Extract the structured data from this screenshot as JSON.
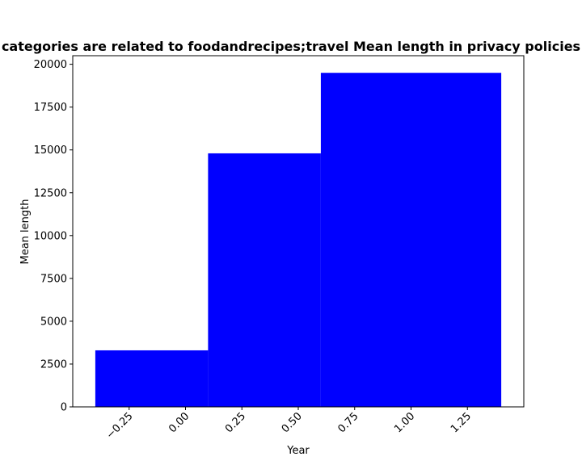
{
  "chart_data": {
    "type": "bar",
    "title": "categories are related to foodandrecipes;travel Mean length in privacy policies",
    "xlabel": "Year",
    "ylabel": "Mean length",
    "bars": [
      {
        "x_start": -0.4,
        "x_end": 0.1,
        "value": 3300
      },
      {
        "x_start": 0.1,
        "x_end": 0.6,
        "value": 14800
      },
      {
        "x_start": 0.6,
        "x_end": 1.4,
        "value": 19500
      }
    ],
    "xlim": [
      -0.5,
      1.5
    ],
    "ylim": [
      0,
      20500
    ],
    "xticks": [
      -0.25,
      0.0,
      0.25,
      0.5,
      0.75,
      1.0,
      1.25
    ],
    "xtick_labels": [
      "−0.25",
      "0.00",
      "0.25",
      "0.50",
      "0.75",
      "1.00",
      "1.25"
    ],
    "yticks": [
      0,
      2500,
      5000,
      7500,
      10000,
      12500,
      15000,
      17500,
      20000
    ],
    "ytick_labels": [
      "0",
      "2500",
      "5000",
      "7500",
      "10000",
      "12500",
      "15000",
      "17500",
      "20000"
    ],
    "bar_color": "#0000ff",
    "grid": false,
    "legend": "none"
  }
}
